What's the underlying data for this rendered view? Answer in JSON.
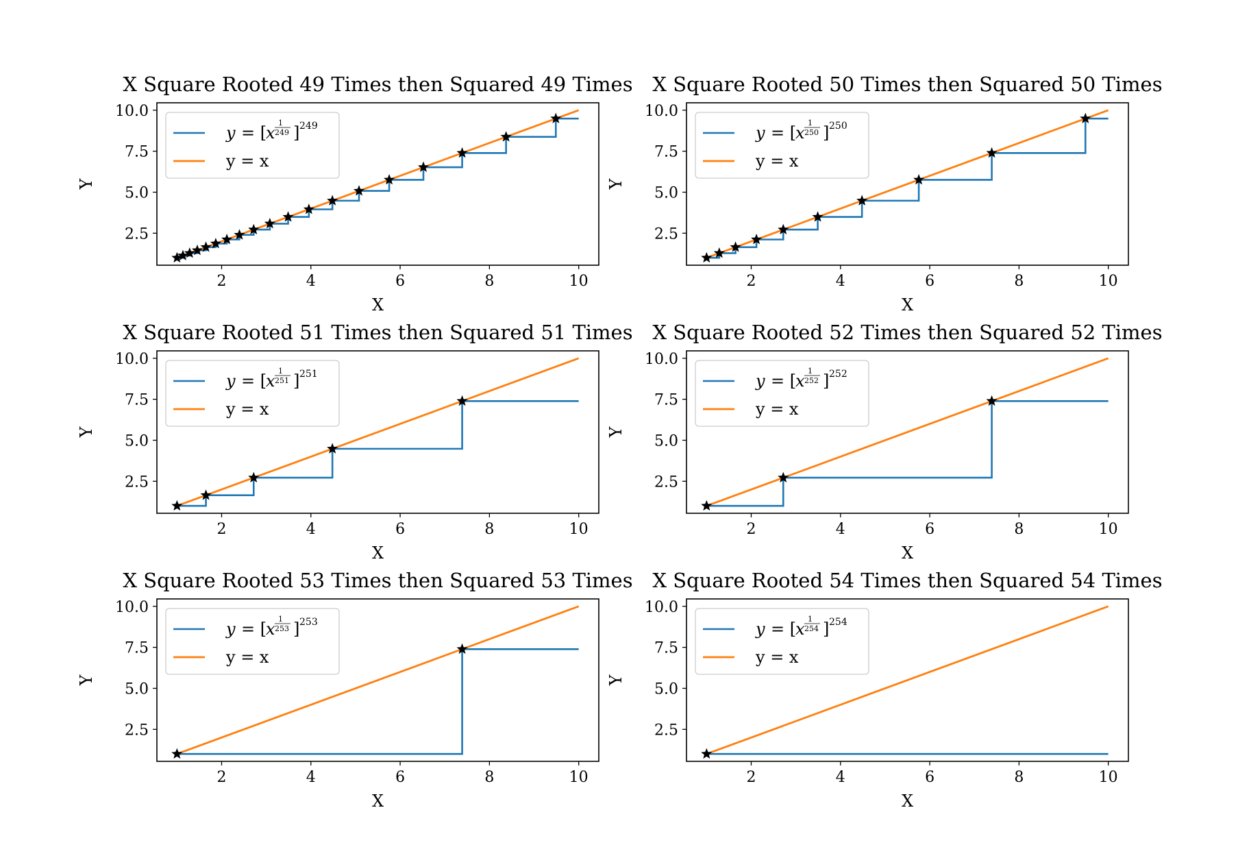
{
  "colors": {
    "transformed": "#1f77b4",
    "identity": "#ff7f0e",
    "marker": "#000000",
    "axes": "#000000",
    "legend_border": "#cccccc"
  },
  "legend_position": "upper-left",
  "chart_data": [
    {
      "type": "line",
      "title": "X Square Rooted 49 Times then Squared 49 Times",
      "xlabel": "X",
      "ylabel": "Y",
      "xlim": [
        0.55,
        10.45
      ],
      "ylim": [
        0.55,
        10.45
      ],
      "xticks": [
        "2",
        "4",
        "6",
        "8",
        "10"
      ],
      "yticks": [
        "2.5",
        "5.0",
        "7.5",
        "10.0"
      ],
      "legend_exponent": "49",
      "series": [
        {
          "name": "y = [x^(1/2^49)]^(2^49)",
          "type": "step",
          "x": [
            1.0,
            1.1331,
            1.284,
            1.4549,
            1.6487,
            1.8682,
            2.117,
            2.3989,
            2.7183,
            3.0802,
            3.4903,
            3.955,
            4.4817,
            5.0784,
            5.7546,
            6.5208,
            7.3891,
            8.3729,
            9.4877,
            10.0
          ],
          "y": [
            1.0,
            1.1331,
            1.284,
            1.4549,
            1.6487,
            1.8682,
            2.117,
            2.3989,
            2.7183,
            3.0802,
            3.4903,
            3.955,
            4.4817,
            5.0784,
            5.7546,
            6.5208,
            7.3891,
            8.3729,
            9.4877,
            9.4877
          ]
        },
        {
          "name": "y = x",
          "x": [
            1,
            10
          ],
          "y": [
            1,
            10
          ]
        }
      ],
      "markers": {
        "style": "star",
        "x": [
          1.0,
          1.1331,
          1.284,
          1.4549,
          1.6487,
          1.8682,
          2.117,
          2.3989,
          2.7183,
          3.0802,
          3.4903,
          3.955,
          4.4817,
          5.0784,
          5.7546,
          6.5208,
          7.3891,
          8.3729,
          9.4877
        ]
      }
    },
    {
      "type": "line",
      "title": "X Square Rooted 50 Times then Squared 50 Times",
      "xlabel": "X",
      "ylabel": "Y",
      "xlim": [
        0.55,
        10.45
      ],
      "ylim": [
        0.55,
        10.45
      ],
      "xticks": [
        "2",
        "4",
        "6",
        "8",
        "10"
      ],
      "yticks": [
        "2.5",
        "5.0",
        "7.5",
        "10.0"
      ],
      "legend_exponent": "50",
      "series": [
        {
          "name": "y = [x^(1/2^50)]^(2^50)",
          "type": "step",
          "x": [
            1.0,
            1.284,
            1.6487,
            2.117,
            2.7183,
            3.4903,
            4.4817,
            5.7546,
            7.3891,
            9.4877,
            10.0
          ],
          "y": [
            1.0,
            1.284,
            1.6487,
            2.117,
            2.7183,
            3.4903,
            4.4817,
            5.7546,
            7.3891,
            9.4877,
            9.4877
          ]
        },
        {
          "name": "y = x",
          "x": [
            1,
            10
          ],
          "y": [
            1,
            10
          ]
        }
      ],
      "markers": {
        "style": "star",
        "x": [
          1.0,
          1.284,
          1.6487,
          2.117,
          2.7183,
          3.4903,
          4.4817,
          5.7546,
          7.3891,
          9.4877
        ]
      }
    },
    {
      "type": "line",
      "title": "X Square Rooted 51 Times then Squared 51 Times",
      "xlabel": "X",
      "ylabel": "Y",
      "xlim": [
        0.55,
        10.45
      ],
      "ylim": [
        0.55,
        10.45
      ],
      "xticks": [
        "2",
        "4",
        "6",
        "8",
        "10"
      ],
      "yticks": [
        "2.5",
        "5.0",
        "7.5",
        "10.0"
      ],
      "legend_exponent": "51",
      "series": [
        {
          "name": "y = [x^(1/2^51)]^(2^51)",
          "type": "step",
          "x": [
            1.0,
            1.6487,
            2.7183,
            4.4817,
            7.3891,
            10.0
          ],
          "y": [
            1.0,
            1.6487,
            2.7183,
            4.4817,
            7.3891,
            7.3891
          ]
        },
        {
          "name": "y = x",
          "x": [
            1,
            10
          ],
          "y": [
            1,
            10
          ]
        }
      ],
      "markers": {
        "style": "star",
        "x": [
          1.0,
          1.6487,
          2.7183,
          4.4817,
          7.3891
        ]
      }
    },
    {
      "type": "line",
      "title": "X Square Rooted 52 Times then Squared 52 Times",
      "xlabel": "X",
      "ylabel": "Y",
      "xlim": [
        0.55,
        10.45
      ],
      "ylim": [
        0.55,
        10.45
      ],
      "xticks": [
        "2",
        "4",
        "6",
        "8",
        "10"
      ],
      "yticks": [
        "2.5",
        "5.0",
        "7.5",
        "10.0"
      ],
      "legend_exponent": "52",
      "series": [
        {
          "name": "y = [x^(1/2^52)]^(2^52)",
          "type": "step",
          "x": [
            1.0,
            2.7183,
            7.3891,
            10.0
          ],
          "y": [
            1.0,
            2.7183,
            7.3891,
            7.3891
          ]
        },
        {
          "name": "y = x",
          "x": [
            1,
            10
          ],
          "y": [
            1,
            10
          ]
        }
      ],
      "markers": {
        "style": "star",
        "x": [
          1.0,
          2.7183,
          7.3891
        ]
      }
    },
    {
      "type": "line",
      "title": "X Square Rooted 53 Times then Squared 53 Times",
      "xlabel": "X",
      "ylabel": "Y",
      "xlim": [
        0.55,
        10.45
      ],
      "ylim": [
        0.55,
        10.45
      ],
      "xticks": [
        "2",
        "4",
        "6",
        "8",
        "10"
      ],
      "yticks": [
        "2.5",
        "5.0",
        "7.5",
        "10.0"
      ],
      "legend_exponent": "53",
      "series": [
        {
          "name": "y = [x^(1/2^53)]^(2^53)",
          "type": "step",
          "x": [
            1.0,
            7.3891,
            10.0
          ],
          "y": [
            1.0,
            7.3891,
            7.3891
          ]
        },
        {
          "name": "y = x",
          "x": [
            1,
            10
          ],
          "y": [
            1,
            10
          ]
        }
      ],
      "markers": {
        "style": "star",
        "x": [
          1.0,
          7.3891
        ]
      }
    },
    {
      "type": "line",
      "title": "X Square Rooted 54 Times then Squared 54 Times",
      "xlabel": "X",
      "ylabel": "Y",
      "xlim": [
        0.55,
        10.45
      ],
      "ylim": [
        0.55,
        10.45
      ],
      "xticks": [
        "2",
        "4",
        "6",
        "8",
        "10"
      ],
      "yticks": [
        "2.5",
        "5.0",
        "7.5",
        "10.0"
      ],
      "legend_exponent": "54",
      "series": [
        {
          "name": "y = [x^(1/2^54)]^(2^54)",
          "type": "step",
          "x": [
            1.0,
            10.0
          ],
          "y": [
            1.0,
            1.0
          ]
        },
        {
          "name": "y = x",
          "x": [
            1,
            10
          ],
          "y": [
            1,
            10
          ]
        }
      ],
      "markers": {
        "style": "star",
        "x": [
          1.0
        ]
      }
    }
  ]
}
